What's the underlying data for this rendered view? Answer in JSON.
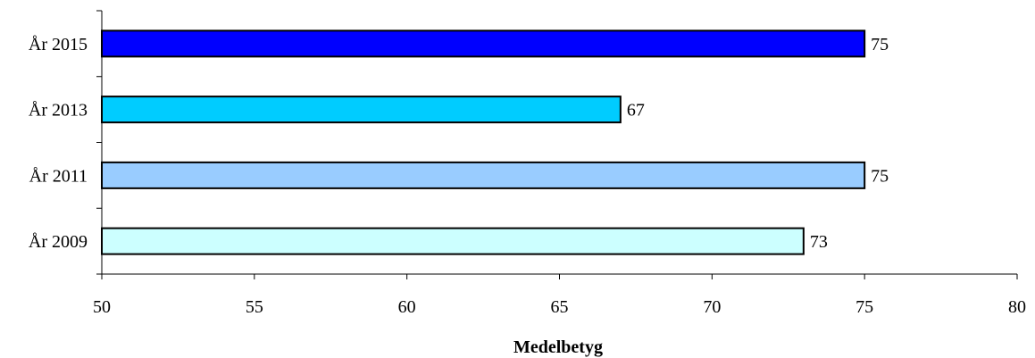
{
  "chart_data": {
    "type": "bar",
    "orientation": "horizontal",
    "categories": [
      "År 2015",
      "År 2013",
      "År 2011",
      "År 2009"
    ],
    "values": [
      75,
      67,
      75,
      73
    ],
    "value_labels": [
      "75",
      "67",
      "75",
      "73"
    ],
    "bar_colors": [
      "#0000ff",
      "#00ccff",
      "#99ccff",
      "#ccffff"
    ],
    "xlabel": "Medelbetyg",
    "xlim": [
      50,
      80
    ],
    "xticks": [
      50,
      55,
      60,
      65,
      70,
      75,
      80
    ],
    "xtick_labels": [
      "50",
      "55",
      "60",
      "65",
      "70",
      "75",
      "80"
    ],
    "grid": false,
    "legend": "none"
  }
}
